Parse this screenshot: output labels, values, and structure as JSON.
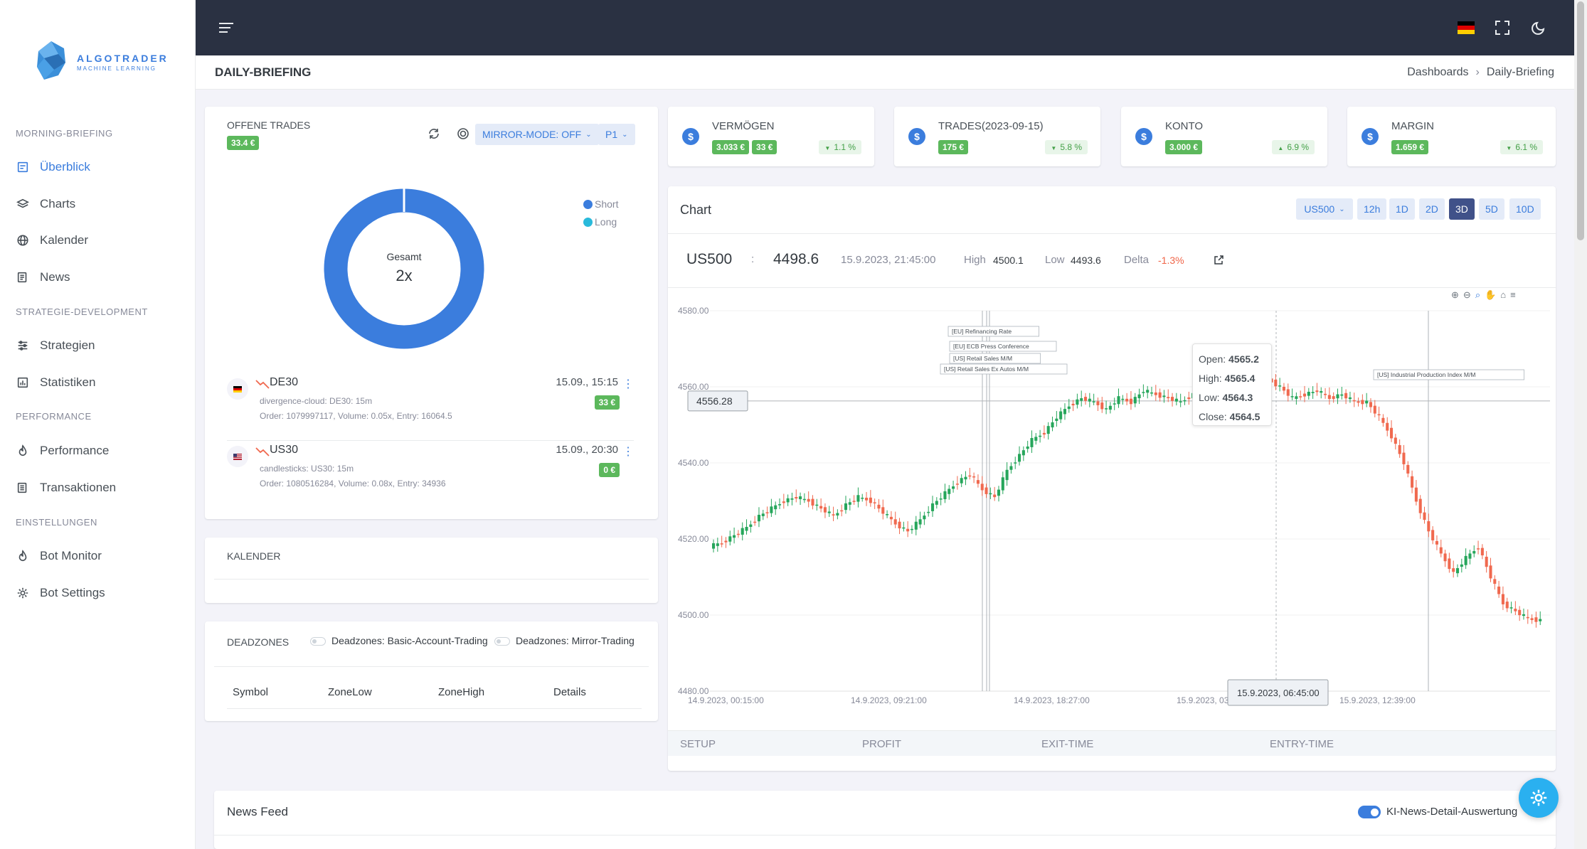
{
  "brand": {
    "name": "ALGOTRADER",
    "tagline": "MACHINE LEARNING"
  },
  "sidebar": {
    "sections": [
      {
        "title": "MORNING-BRIEFING"
      },
      {
        "title": "STRATEGIE-DEVELOPMENT"
      },
      {
        "title": "PERFORMANCE"
      },
      {
        "title": "EINSTELLUNGEN"
      }
    ],
    "items": [
      {
        "label": "Überblick",
        "icon": "dashboard-icon",
        "active": true
      },
      {
        "label": "Charts",
        "icon": "layers-icon"
      },
      {
        "label": "Kalender",
        "icon": "globe-icon"
      },
      {
        "label": "News",
        "icon": "newspaper-icon"
      },
      {
        "label": "Strategien",
        "icon": "sliders-icon"
      },
      {
        "label": "Statistiken",
        "icon": "bar-chart-icon"
      },
      {
        "label": "Performance",
        "icon": "flame-icon"
      },
      {
        "label": "Transaktionen",
        "icon": "list-icon"
      },
      {
        "label": "Bot Monitor",
        "icon": "flame-icon"
      },
      {
        "label": "Bot Settings",
        "icon": "gear-icon"
      }
    ]
  },
  "topbar": {
    "icons": [
      "menu-icon",
      "german-flag-icon",
      "fullscreen-icon",
      "moon-icon"
    ]
  },
  "page": {
    "title": "DAILY-BRIEFING",
    "breadcrumb": [
      "Dashboards",
      "Daily-Briefing"
    ]
  },
  "open_trades": {
    "title": "OFFENE TRADES",
    "total_badge": "33.4 €",
    "mirror_mode": "MIRROR-MODE: OFF",
    "profile": "P1",
    "donut": {
      "center_label": "Gesamt",
      "center_value": "2x",
      "short": 2,
      "long": 0,
      "color_short": "#3b7ddd",
      "color_long": "#29badb"
    },
    "legend": [
      "Short",
      "Long"
    ],
    "trades": [
      {
        "symbol": "DE30",
        "strategy": "divergence-cloud: DE30: 15m",
        "order": "Order: 1079997117, Volume: 0.05x, Entry: 16064.5",
        "time": "15.09., 15:15",
        "pnl": "33 €"
      },
      {
        "symbol": "US30",
        "strategy": "candlesticks: US30: 15m",
        "order": "Order: 1080516284, Volume: 0.08x, Entry: 34936",
        "time": "15.09., 20:30",
        "pnl": "0 €"
      }
    ]
  },
  "kalender": {
    "title": "KALENDER"
  },
  "deadzones": {
    "title": "DEADZONES",
    "toggle1": "Deadzones: Basic-Account-Trading",
    "toggle2": "Deadzones: Mirror-Trading",
    "columns": [
      "Symbol",
      "ZoneLow",
      "ZoneHigh",
      "Details"
    ]
  },
  "stats": [
    {
      "title": "VERMÖGEN",
      "badges": [
        "3.033 €",
        "33 €"
      ],
      "pct": "1.1 %"
    },
    {
      "title": "TRADES(2023-09-15)",
      "badges": [
        "175 €"
      ],
      "pct": "5.8 %"
    },
    {
      "title": "KONTO",
      "badges": [
        "3.000 €"
      ],
      "pct": "6.9 %"
    },
    {
      "title": "MARGIN",
      "badges": [
        "1.659 €"
      ],
      "pct": "6.1 %"
    }
  ],
  "chart_panel": {
    "title": "Chart",
    "symbol_select": "US500",
    "timeframes": [
      "12h",
      "1D",
      "2D",
      "3D",
      "5D",
      "10D"
    ],
    "active_timeframe": "3D",
    "info": {
      "symbol": "US500",
      "sep": ":",
      "price": "4498.6",
      "datetime": "15.9.2023, 21:45:00",
      "high_label": "High",
      "high": "4500.1",
      "low_label": "Low",
      "low": "4493.6",
      "delta_label": "Delta",
      "delta": "-1.3%"
    },
    "crosshair_price": "4556.28",
    "crosshair_time": "15.9.2023, 06:45:00",
    "tooltip": {
      "open_label": "Open:",
      "open": "4565.2",
      "high_label": "High:",
      "high": "4565.4",
      "low_label": "Low:",
      "low": "4564.3",
      "close_label": "Close:",
      "close": "4564.5"
    },
    "events": [
      "[EU] Refinancing Rate",
      "[EU] ECB Press Conference",
      "[US] Retail Sales M/M",
      "[US] Retail Sales Ex Autos M/M",
      "[US] Industrial Production Index M/M"
    ],
    "toolbar_icons": [
      "zoom-in-icon",
      "zoom-out-icon",
      "zoom-select-icon",
      "pan-icon",
      "home-icon",
      "menu-icon"
    ],
    "bull_color": "#26a65b",
    "bear_color": "#f0694f"
  },
  "chart_data": {
    "type": "candlestick",
    "y_ticks": [
      "4580.00",
      "4560.00",
      "4540.00",
      "4520.00",
      "4500.00",
      "4480.00"
    ],
    "ylim": [
      4480,
      4580
    ],
    "x_ticks": [
      "14.9.2023, 00:15:00",
      "14.9.2023, 09:21:00",
      "14.9.2023, 18:27:00",
      "15.9.2023, 03:33:00",
      "15.9.2023, 12:39:00"
    ],
    "series_close": [
      4519,
      4521,
      4523,
      4526,
      4528,
      4530,
      4531,
      4530,
      4528,
      4526,
      4529,
      4531,
      4530,
      4527,
      4524,
      4522,
      4525,
      4529,
      4532,
      4535,
      4537,
      4533,
      4531,
      4538,
      4542,
      4546,
      4548,
      4552,
      4555,
      4557,
      4556,
      4554,
      4557,
      4556,
      4559,
      4558,
      4557,
      4556,
      4558,
      4560,
      4557,
      4561,
      4560,
      4563,
      4562,
      4560,
      4557,
      4558,
      4559,
      4557,
      4558,
      4556,
      4556,
      4552,
      4547,
      4540,
      4530,
      4522,
      4516,
      4511,
      4515,
      4518,
      4510,
      4503,
      4501,
      4499,
      4498.6
    ]
  },
  "trades_table": {
    "columns": [
      "SETUP",
      "PROFIT",
      "EXIT-TIME",
      "ENTRY-TIME"
    ]
  },
  "news_feed": {
    "title": "News Feed",
    "toggle_label": "KI-News-Detail-Auswertung"
  }
}
